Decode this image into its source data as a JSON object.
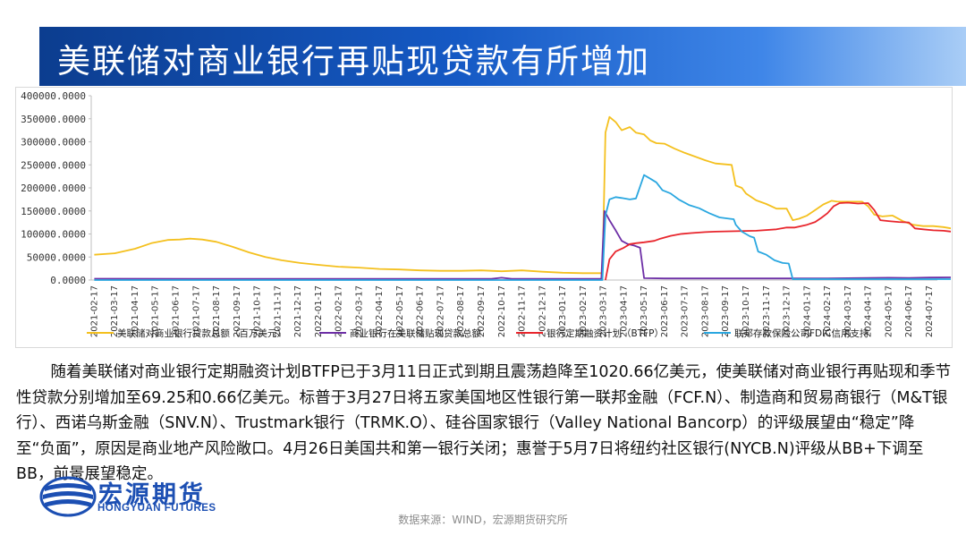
{
  "title": "美联储对商业银行再贴现贷款有所增加",
  "chart_data": {
    "type": "line",
    "y_ticks": [
      "400000.0000",
      "350000.0000",
      "300000.0000",
      "250000.0000",
      "200000.0000",
      "150000.0000",
      "100000.0000",
      "50000.0000",
      "0.0000"
    ],
    "ylim": [
      0,
      400000
    ],
    "grid": false,
    "legend_position": "bottom",
    "x_labels": [
      "2021-02-17",
      "2021-03-17",
      "2021-04-17",
      "2021-05-17",
      "2021-06-17",
      "2021-07-17",
      "2021-08-17",
      "2021-09-17",
      "2021-10-17",
      "2021-11-17",
      "2021-12-17",
      "2022-01-17",
      "2022-02-17",
      "2022-03-17",
      "2022-04-17",
      "2022-05-17",
      "2022-06-17",
      "2022-07-17",
      "2022-08-17",
      "2022-09-17",
      "2022-10-17",
      "2022-11-17",
      "2022-12-17",
      "2023-01-17",
      "2023-02-17",
      "2023-03-17",
      "2023-04-17",
      "2023-05-17",
      "2023-06-17",
      "2023-07-17",
      "2023-08-17",
      "2023-09-17",
      "2023-10-17",
      "2023-11-17",
      "2023-12-17",
      "2024-01-17",
      "2024-02-17",
      "2024-03-17",
      "2024-04-17",
      "2024-05-17",
      "2024-06-17",
      "2024-07-17"
    ],
    "series": [
      {
        "name": "美联储对商业银行贷款总额（百万美元）",
        "color": "#f4c01e",
        "points": [
          [
            0,
            55000
          ],
          [
            1,
            58000
          ],
          [
            2,
            68000
          ],
          [
            2.8,
            80000
          ],
          [
            3.6,
            87000
          ],
          [
            4.2,
            88000
          ],
          [
            4.7,
            90000
          ],
          [
            5.3,
            88000
          ],
          [
            6,
            83000
          ],
          [
            6.8,
            72000
          ],
          [
            7.6,
            60000
          ],
          [
            8.4,
            50000
          ],
          [
            9.2,
            43000
          ],
          [
            10.1,
            37000
          ],
          [
            11,
            33000
          ],
          [
            12,
            29000
          ],
          [
            13,
            27000
          ],
          [
            14,
            24000
          ],
          [
            15,
            23000
          ],
          [
            16,
            21000
          ],
          [
            17,
            20000
          ],
          [
            18,
            20000
          ],
          [
            19,
            21000
          ],
          [
            20,
            19000
          ],
          [
            21,
            21000
          ],
          [
            22,
            18000
          ],
          [
            23,
            16000
          ],
          [
            24,
            15000
          ],
          [
            24.95,
            15000
          ],
          [
            25.1,
            320000
          ],
          [
            25.3,
            354000
          ],
          [
            25.6,
            343000
          ],
          [
            25.9,
            325000
          ],
          [
            26.3,
            332000
          ],
          [
            26.6,
            320000
          ],
          [
            27,
            316000
          ],
          [
            27.3,
            303000
          ],
          [
            27.6,
            297000
          ],
          [
            28,
            296000
          ],
          [
            28.5,
            285000
          ],
          [
            29,
            276000
          ],
          [
            29.5,
            268000
          ],
          [
            30,
            260000
          ],
          [
            30.5,
            253000
          ],
          [
            31,
            251000
          ],
          [
            31.3,
            250000
          ],
          [
            31.5,
            205000
          ],
          [
            31.8,
            200000
          ],
          [
            32,
            188000
          ],
          [
            32.5,
            173000
          ],
          [
            33,
            165000
          ],
          [
            33.5,
            155000
          ],
          [
            34,
            155000
          ],
          [
            34.3,
            130000
          ],
          [
            34.6,
            133000
          ],
          [
            35,
            140000
          ],
          [
            35.4,
            152000
          ],
          [
            35.8,
            164000
          ],
          [
            36.2,
            172000
          ],
          [
            36.5,
            170000
          ],
          [
            37,
            170000
          ],
          [
            37.7,
            170000
          ],
          [
            38,
            160000
          ],
          [
            38.3,
            142000
          ],
          [
            38.7,
            138000
          ],
          [
            39.2,
            140000
          ],
          [
            39.7,
            128000
          ],
          [
            40.2,
            120000
          ],
          [
            40.7,
            117000
          ],
          [
            41.2,
            117000
          ],
          [
            41.7,
            115000
          ],
          [
            42.1,
            112000
          ],
          [
            42.6,
            111000
          ]
        ]
      },
      {
        "name": "商业银行在美联储贴现贷款总额",
        "color": "#6d2fa6",
        "points": [
          [
            0,
            3000
          ],
          [
            5,
            2500
          ],
          [
            10,
            2500
          ],
          [
            15,
            2500
          ],
          [
            19.5,
            2500
          ],
          [
            20,
            5000
          ],
          [
            20.5,
            2500
          ],
          [
            24.9,
            2500
          ],
          [
            25.05,
            150000
          ],
          [
            25.3,
            130000
          ],
          [
            25.6,
            108000
          ],
          [
            25.9,
            85000
          ],
          [
            26.2,
            78000
          ],
          [
            26.5,
            75000
          ],
          [
            26.8,
            70000
          ],
          [
            27,
            4000
          ],
          [
            28,
            3500
          ],
          [
            30,
            3500
          ],
          [
            32,
            3500
          ],
          [
            34,
            3500
          ],
          [
            36,
            3500
          ],
          [
            38,
            4500
          ],
          [
            39,
            5000
          ],
          [
            40,
            4500
          ],
          [
            41,
            5500
          ],
          [
            42.6,
            6000
          ]
        ]
      },
      {
        "name": "银行定期融资计划（BTFP）",
        "color": "#e8262d",
        "points": [
          [
            25.1,
            0
          ],
          [
            25.3,
            45000
          ],
          [
            25.6,
            62000
          ],
          [
            26,
            70000
          ],
          [
            26.3,
            78000
          ],
          [
            26.6,
            80000
          ],
          [
            27,
            82000
          ],
          [
            27.5,
            85000
          ],
          [
            27.8,
            90000
          ],
          [
            28.3,
            96000
          ],
          [
            28.8,
            100000
          ],
          [
            29.3,
            102000
          ],
          [
            30,
            104000
          ],
          [
            30.5,
            105000
          ],
          [
            31.5,
            106000
          ],
          [
            32.5,
            107000
          ],
          [
            33.5,
            110000
          ],
          [
            34,
            114000
          ],
          [
            34.4,
            114000
          ],
          [
            35,
            120000
          ],
          [
            35.4,
            126000
          ],
          [
            35.7,
            135000
          ],
          [
            36,
            145000
          ],
          [
            36.3,
            160000
          ],
          [
            36.6,
            167000
          ],
          [
            37,
            168000
          ],
          [
            37.5,
            166000
          ],
          [
            38,
            167000
          ],
          [
            38.3,
            152000
          ],
          [
            38.6,
            130000
          ],
          [
            39,
            128000
          ],
          [
            39.5,
            126000
          ],
          [
            40,
            125000
          ],
          [
            40.3,
            112000
          ],
          [
            40.7,
            110000
          ],
          [
            41.2,
            108000
          ],
          [
            41.7,
            107000
          ],
          [
            42.1,
            105000
          ],
          [
            42.6,
            101000
          ]
        ]
      },
      {
        "name": "联邦存款保险公司FDIC信用支持",
        "color": "#2aa7e0",
        "points": [
          [
            0,
            0
          ],
          [
            24.95,
            0
          ],
          [
            25.1,
            140000
          ],
          [
            25.3,
            175000
          ],
          [
            25.6,
            180000
          ],
          [
            25.9,
            178000
          ],
          [
            26.3,
            175000
          ],
          [
            26.6,
            177000
          ],
          [
            27,
            228000
          ],
          [
            27.3,
            220000
          ],
          [
            27.6,
            212000
          ],
          [
            27.9,
            195000
          ],
          [
            28.3,
            188000
          ],
          [
            28.7,
            175000
          ],
          [
            29.2,
            163000
          ],
          [
            29.7,
            156000
          ],
          [
            30.2,
            145000
          ],
          [
            30.7,
            136000
          ],
          [
            31.2,
            133000
          ],
          [
            31.4,
            132000
          ],
          [
            31.5,
            120000
          ],
          [
            31.8,
            105000
          ],
          [
            32.2,
            95000
          ],
          [
            32.4,
            92000
          ],
          [
            32.6,
            62000
          ],
          [
            33,
            55000
          ],
          [
            33.4,
            43000
          ],
          [
            33.8,
            37000
          ],
          [
            34.1,
            36000
          ],
          [
            34.3,
            2000
          ],
          [
            42.6,
            2000
          ]
        ]
      }
    ]
  },
  "body_paragraph": "随着美联储对商业银行定期融资计划BTFP已于3月11日正式到期且震荡趋降至1020.66亿美元，使美联储对商业银行再贴现和季节性贷款分别增加至69.25和0.66亿美元。标普于3月27日将五家美国地区性银行第一联邦金融（FCF.N）、制造商和贸易商银行（M&T银行）、西诺乌斯金融（SNV.N）、Trustmark银行（TRMK.O）、硅谷国家银行（Valley National Bancorp）的评级展望由“稳定”降至“负面”，原因是商业地产风险敞口。4月26日美国共和第一银行关闭；惠誉于5月7日将纽约社区银行(NYCB.N)评级从BB+下调至BB，前景展望稳定。",
  "logo": {
    "cn": "宏源期货",
    "en": "HONGYUAN FUTURES",
    "color": "#1c4fb3"
  },
  "source": "数据来源：WIND，宏源期货研究所"
}
